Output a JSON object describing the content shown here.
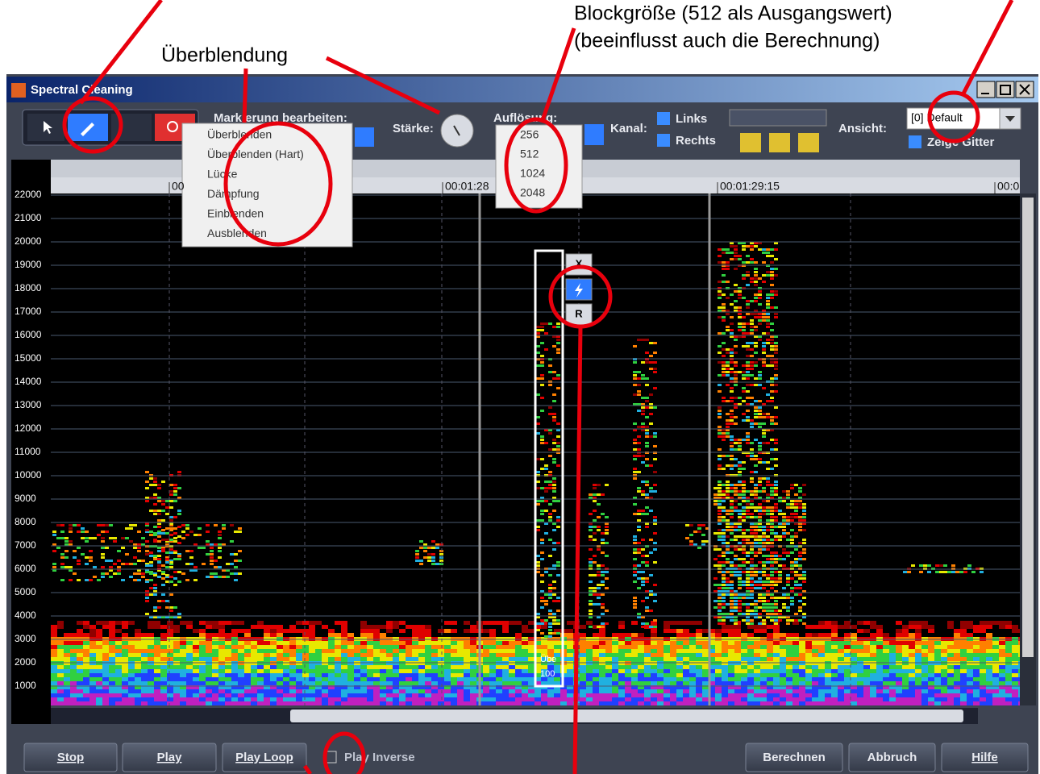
{
  "annotations": {
    "blend": "Überblendung",
    "block_size": "Blockgröße (512 als Ausgangswert)",
    "block_size_note": "(beeinflusst auch die Berechnung)"
  },
  "window": {
    "title": "Spectral Cleaning"
  },
  "toolbar": {
    "edit_label": "Markierung bearbeiten:",
    "strength_label": "Stärke:",
    "resolution_label": "Auflösung:",
    "channel_label": "Kanal:",
    "channels": [
      "Links",
      "Rechts"
    ],
    "view_label": "Ansicht:",
    "view_value": "[0] Default",
    "show_grid": "Zeige Gitter"
  },
  "blend_menu": [
    "Überblenden",
    "Überblenden (Hart)",
    "Lücke",
    "Dämpfung",
    "Einblenden",
    "Ausblenden"
  ],
  "resolution_menu": [
    "256",
    "512",
    "1024",
    "2048"
  ],
  "timeline": [
    "00",
    "00:01:28",
    "00:01:29:15",
    "00:0"
  ],
  "frequency_labels": [
    22000,
    21000,
    20000,
    19000,
    18000,
    17000,
    16000,
    15000,
    14000,
    13000,
    12000,
    11000,
    10000,
    9000,
    8000,
    7000,
    6000,
    5000,
    4000,
    3000,
    2000,
    1000
  ],
  "selection": {
    "label": "Übe",
    "value": "100",
    "buttons": [
      "X",
      "R"
    ]
  },
  "buttons": [
    "Stop",
    "Play",
    "Play Loop",
    "Berechnen",
    "Abbruch",
    "Hilfe"
  ],
  "play_inverse": "Play Inverse"
}
